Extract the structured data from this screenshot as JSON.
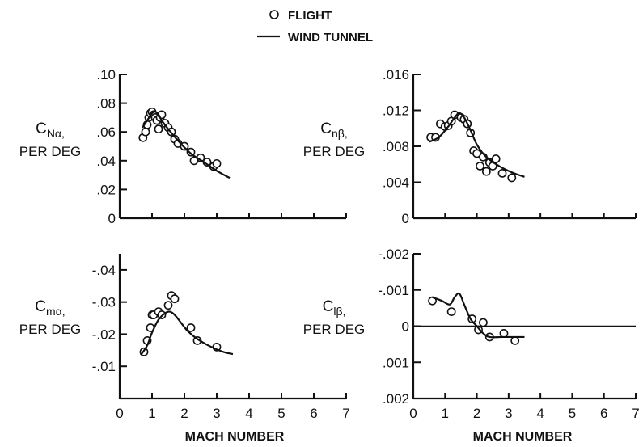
{
  "legend": {
    "flight_label": "FLIGHT",
    "tunnel_label": "WIND TUNNEL"
  },
  "x_axis_label": "MACH NUMBER",
  "chart_data": [
    {
      "id": "cna",
      "type": "scatter",
      "ylabel_main": "C",
      "ylabel_sub": "Nα,",
      "ylabel_unit": "PER DEG",
      "xlim": [
        0,
        7
      ],
      "ylim": [
        0,
        0.1
      ],
      "x_ticks": [
        0,
        1,
        2,
        3,
        4,
        5,
        6,
        7
      ],
      "x_tick_labels": [],
      "y_ticks": [
        0,
        0.02,
        0.04,
        0.06,
        0.08,
        0.1
      ],
      "y_tick_labels": [
        "0",
        ".02",
        ".04",
        ".06",
        ".08",
        ".10"
      ],
      "zero_line": false,
      "series": [
        {
          "kind": "flight",
          "x": [
            0.72,
            0.8,
            0.85,
            0.9,
            0.95,
            1.0,
            1.05,
            1.1,
            1.15,
            1.2,
            1.25,
            1.3,
            1.4,
            1.5,
            1.6,
            1.7,
            1.8,
            2.0,
            2.2,
            2.3,
            2.5,
            2.7,
            2.9,
            3.0
          ],
          "y": [
            0.056,
            0.06,
            0.065,
            0.07,
            0.073,
            0.074,
            0.072,
            0.07,
            0.068,
            0.062,
            0.07,
            0.072,
            0.066,
            0.063,
            0.06,
            0.055,
            0.052,
            0.05,
            0.046,
            0.04,
            0.042,
            0.039,
            0.036,
            0.038
          ]
        },
        {
          "kind": "tunnel",
          "x": [
            0.7,
            0.85,
            1.0,
            1.1,
            1.2,
            1.3,
            1.5,
            1.8,
            2.2,
            2.6,
            3.0,
            3.4
          ],
          "y": [
            0.063,
            0.068,
            0.073,
            0.074,
            0.072,
            0.068,
            0.062,
            0.054,
            0.045,
            0.039,
            0.033,
            0.028
          ]
        }
      ]
    },
    {
      "id": "cnb",
      "type": "scatter",
      "ylabel_main": "C",
      "ylabel_sub": "nβ,",
      "ylabel_unit": "PER DEG",
      "xlim": [
        0,
        7
      ],
      "ylim": [
        0,
        0.016
      ],
      "x_ticks": [
        0,
        1,
        2,
        3,
        4,
        5,
        6,
        7
      ],
      "x_tick_labels": [],
      "y_ticks": [
        0,
        0.004,
        0.008,
        0.012,
        0.016
      ],
      "y_tick_labels": [
        "0",
        ".004",
        ".008",
        ".012",
        ".016"
      ],
      "zero_line": false,
      "series": [
        {
          "kind": "flight",
          "x": [
            0.55,
            0.7,
            0.85,
            1.0,
            1.1,
            1.2,
            1.3,
            1.5,
            1.6,
            1.7,
            1.8,
            1.9,
            2.0,
            2.1,
            2.2,
            2.3,
            2.4,
            2.5,
            2.6,
            2.8,
            3.1
          ],
          "y": [
            0.009,
            0.009,
            0.0105,
            0.0102,
            0.0103,
            0.0108,
            0.0115,
            0.0112,
            0.011,
            0.0105,
            0.0095,
            0.0075,
            0.0072,
            0.0058,
            0.0068,
            0.0052,
            0.0062,
            0.0058,
            0.0066,
            0.005,
            0.0045
          ]
        },
        {
          "kind": "tunnel",
          "x": [
            0.5,
            0.8,
            1.1,
            1.3,
            1.45,
            1.6,
            1.8,
            2.0,
            2.3,
            2.7,
            3.1,
            3.5
          ],
          "y": [
            0.0085,
            0.009,
            0.0102,
            0.0112,
            0.0117,
            0.0112,
            0.0098,
            0.0082,
            0.0068,
            0.0058,
            0.0051,
            0.0046
          ]
        }
      ]
    },
    {
      "id": "cma",
      "type": "scatter",
      "ylabel_main": "C",
      "ylabel_sub": "mα,",
      "ylabel_unit": "PER DEG",
      "xlim": [
        0,
        7
      ],
      "ylim": [
        0,
        -0.045
      ],
      "x_ticks": [
        0,
        1,
        2,
        3,
        4,
        5,
        6,
        7
      ],
      "x_tick_labels": [
        "0",
        "1",
        "2",
        "3",
        "4",
        "5",
        "6",
        "7"
      ],
      "y_ticks": [
        -0.01,
        -0.02,
        -0.03,
        -0.04
      ],
      "y_tick_labels": [
        "-.01",
        "-.02",
        "-.03",
        "-.04"
      ],
      "zero_line": false,
      "series": [
        {
          "kind": "flight",
          "x": [
            0.75,
            0.85,
            0.95,
            1.0,
            1.05,
            1.2,
            1.3,
            1.5,
            1.6,
            1.7,
            2.2,
            2.4,
            3.0
          ],
          "y": [
            -0.0145,
            -0.018,
            -0.022,
            -0.026,
            -0.026,
            -0.027,
            -0.026,
            -0.029,
            -0.032,
            -0.031,
            -0.022,
            -0.018,
            -0.016
          ]
        },
        {
          "kind": "tunnel",
          "x": [
            0.65,
            0.85,
            1.0,
            1.2,
            1.4,
            1.55,
            1.7,
            1.9,
            2.1,
            2.4,
            2.8,
            3.2,
            3.5
          ],
          "y": [
            -0.0135,
            -0.0165,
            -0.0205,
            -0.0245,
            -0.0265,
            -0.027,
            -0.026,
            -0.0235,
            -0.021,
            -0.0185,
            -0.0162,
            -0.0145,
            -0.0138
          ]
        }
      ]
    },
    {
      "id": "clb",
      "type": "scatter",
      "ylabel_main": "C",
      "ylabel_sub": "lβ,",
      "ylabel_unit": "PER DEG",
      "xlim": [
        0,
        7
      ],
      "ylim": [
        0.002,
        -0.002
      ],
      "x_ticks": [
        0,
        1,
        2,
        3,
        4,
        5,
        6,
        7
      ],
      "x_tick_labels": [
        "0",
        "1",
        "2",
        "3",
        "4",
        "5",
        "6",
        "7"
      ],
      "y_ticks": [
        -0.002,
        -0.001,
        0,
        0.001,
        0.002
      ],
      "y_tick_labels": [
        "-.002",
        "-.001",
        "0",
        ".001",
        ".002"
      ],
      "zero_line": true,
      "series": [
        {
          "kind": "flight",
          "x": [
            0.6,
            1.2,
            1.85,
            2.05,
            2.2,
            2.4,
            2.85,
            3.2
          ],
          "y": [
            -0.0007,
            -0.0004,
            -0.0002,
            0.0001,
            -0.0001,
            0.0003,
            0.0002,
            0.0004
          ]
        },
        {
          "kind": "tunnel",
          "x": [
            0.6,
            0.9,
            1.15,
            1.3,
            1.45,
            1.6,
            1.8,
            2.0,
            2.2,
            2.4,
            2.8,
            3.2,
            3.5
          ],
          "y": [
            -0.0008,
            -0.0007,
            -0.0006,
            -0.0008,
            -0.0009,
            -0.0006,
            -0.0002,
            0.0,
            0.0002,
            0.0003,
            0.0003,
            0.0003,
            0.0003
          ]
        }
      ]
    }
  ]
}
